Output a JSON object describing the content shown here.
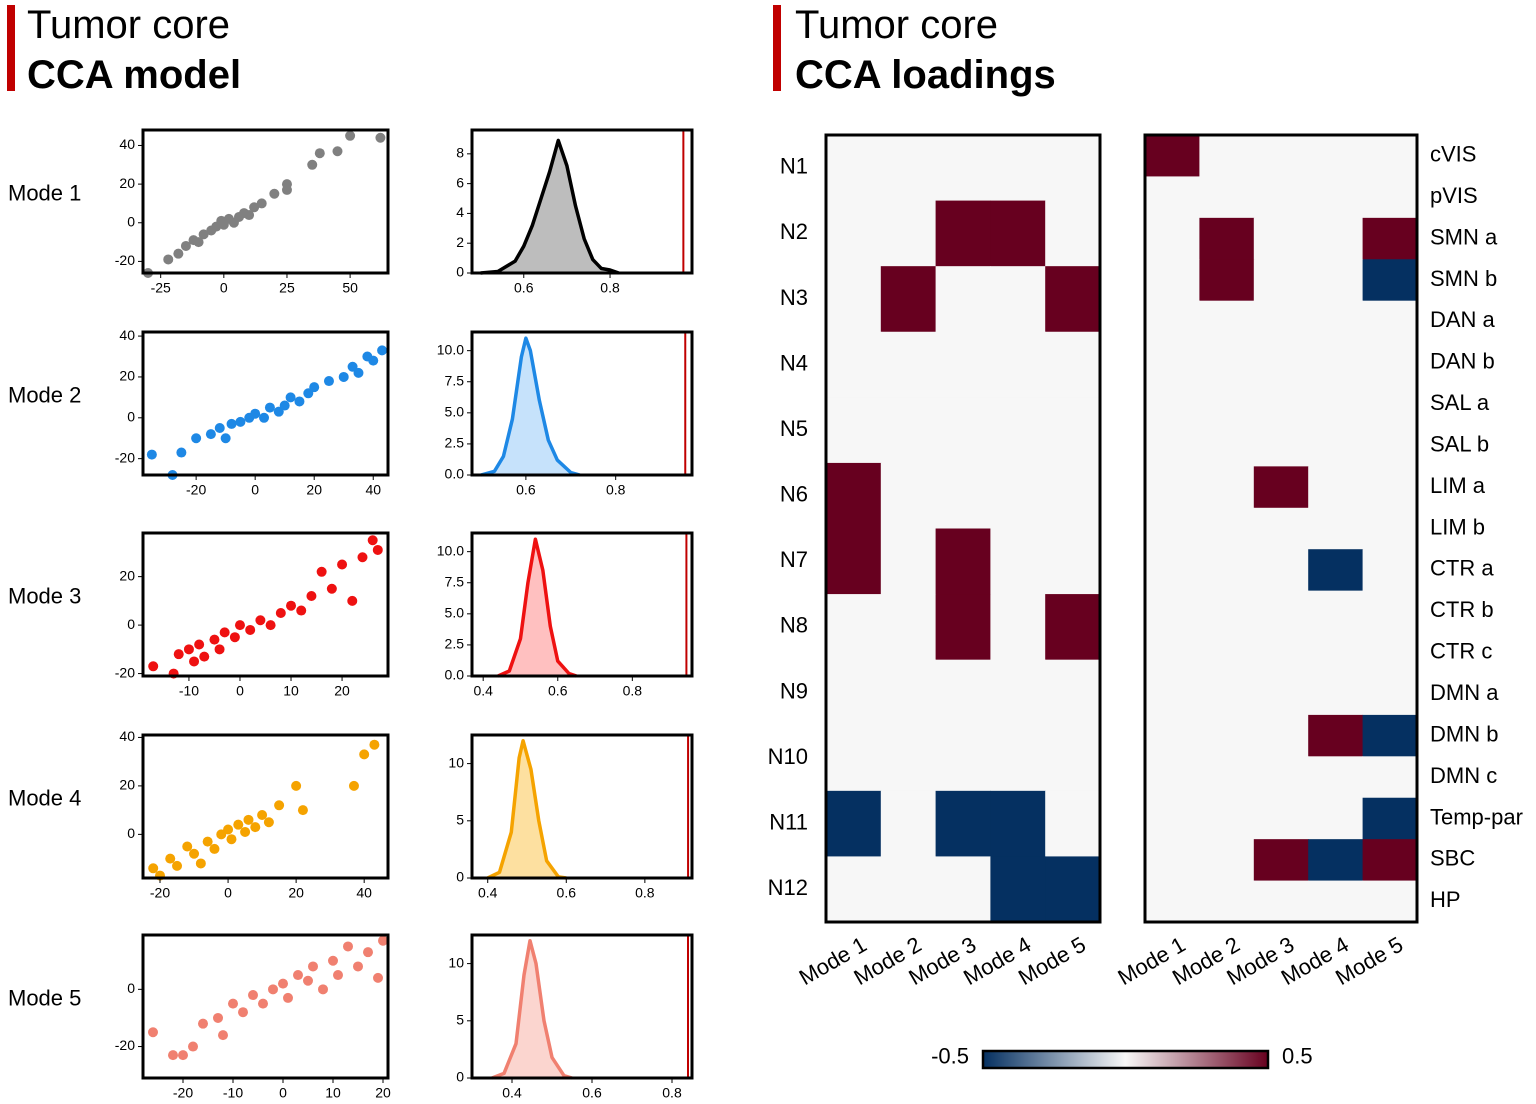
{
  "panels": [
    {
      "title": "Tumor core",
      "subtitle": "CCA model"
    },
    {
      "title": "Tumor core",
      "subtitle": "CCA loadings"
    }
  ],
  "chart_data": [
    {
      "type": "scatter",
      "title": "Mode 1",
      "color": "#808080",
      "x": [
        -30,
        -22,
        -18,
        -15,
        -12,
        -10,
        -8,
        -5,
        -3,
        -1,
        0,
        2,
        4,
        6,
        8,
        10,
        12,
        15,
        20,
        25,
        25,
        35,
        38,
        45,
        50,
        62
      ],
      "values": [
        -26,
        -19,
        -16,
        -12,
        -9,
        -10,
        -6,
        -4,
        -2,
        1,
        -1,
        2,
        0,
        3,
        5,
        4,
        8,
        10,
        15,
        20,
        17,
        30,
        36,
        37,
        45,
        44
      ],
      "xlim": [
        -32,
        65
      ],
      "xticks": [
        -25,
        0,
        25,
        50
      ],
      "ylim": [
        -26,
        48
      ],
      "yticks": [
        -20,
        0,
        20,
        40
      ]
    },
    {
      "type": "scatter",
      "title": "Mode 2",
      "color": "#1e88e5",
      "x": [
        -35,
        -28,
        -25,
        -20,
        -15,
        -12,
        -10,
        -8,
        -5,
        -2,
        0,
        3,
        5,
        8,
        10,
        12,
        15,
        18,
        20,
        25,
        30,
        33,
        35,
        38,
        40,
        43
      ],
      "values": [
        -18,
        -28,
        -17,
        -10,
        -8,
        -5,
        -10,
        -3,
        -2,
        0,
        2,
        0,
        5,
        3,
        6,
        10,
        8,
        12,
        15,
        18,
        20,
        25,
        22,
        30,
        28,
        33
      ],
      "xlim": [
        -38,
        45
      ],
      "xticks": [
        -20,
        0,
        20,
        40
      ],
      "ylim": [
        -28,
        42
      ],
      "yticks": [
        -20,
        0,
        20,
        40
      ]
    },
    {
      "type": "scatter",
      "title": "Mode 3",
      "color": "#ee1111",
      "x": [
        -17,
        -13,
        -12,
        -10,
        -9,
        -8,
        -7,
        -5,
        -4,
        -3,
        -1,
        0,
        2,
        4,
        6,
        8,
        10,
        12,
        14,
        16,
        18,
        20,
        22,
        24,
        26,
        27
      ],
      "values": [
        -17,
        -20,
        -12,
        -10,
        -15,
        -8,
        -13,
        -6,
        -10,
        -3,
        -5,
        0,
        -2,
        2,
        0,
        5,
        8,
        6,
        12,
        22,
        15,
        25,
        10,
        28,
        35,
        31
      ],
      "xlim": [
        -19,
        29
      ],
      "xticks": [
        -10,
        0,
        10,
        20
      ],
      "ylim": [
        -21,
        38
      ],
      "yticks": [
        -20,
        0,
        20
      ]
    },
    {
      "type": "scatter",
      "title": "Mode 4",
      "color": "#f5a300",
      "x": [
        -22,
        -20,
        -17,
        -15,
        -12,
        -10,
        -8,
        -6,
        -4,
        -2,
        0,
        1,
        3,
        5,
        6,
        8,
        10,
        12,
        15,
        20,
        22,
        37,
        40,
        43
      ],
      "values": [
        -14,
        -17,
        -10,
        -13,
        -5,
        -8,
        -12,
        -3,
        -6,
        0,
        2,
        -2,
        4,
        1,
        6,
        3,
        8,
        5,
        12,
        20,
        10,
        20,
        33,
        37
      ],
      "xlim": [
        -25,
        47
      ],
      "xticks": [
        -20,
        0,
        20,
        40
      ],
      "ylim": [
        -18,
        41
      ],
      "yticks": [
        0,
        20,
        40
      ]
    },
    {
      "type": "scatter",
      "title": "Mode 5",
      "color": "#f08070",
      "x": [
        -26,
        -22,
        -20,
        -18,
        -16,
        -13,
        -12,
        -10,
        -8,
        -6,
        -4,
        -2,
        0,
        1,
        3,
        5,
        6,
        8,
        10,
        11,
        13,
        15,
        17,
        19,
        20
      ],
      "values": [
        -15,
        -23,
        -23,
        -20,
        -12,
        -10,
        -16,
        -5,
        -8,
        -2,
        -5,
        0,
        2,
        -3,
        5,
        3,
        8,
        0,
        10,
        5,
        15,
        8,
        13,
        4,
        17
      ],
      "xlim": [
        -28,
        21
      ],
      "xticks": [
        -20,
        -10,
        0,
        10,
        20
      ],
      "ylim": [
        -31,
        19
      ],
      "yticks": [
        -20,
        0
      ]
    },
    {
      "type": "area",
      "line_color": "#000000",
      "fill": "#bdbdbd",
      "threshold": 0.97,
      "threshold_color": "#c00000",
      "x": [
        0.5,
        0.54,
        0.58,
        0.6,
        0.62,
        0.64,
        0.66,
        0.68,
        0.7,
        0.72,
        0.74,
        0.76,
        0.78,
        0.8,
        0.82
      ],
      "values": [
        0,
        0.1,
        0.8,
        1.8,
        3.2,
        5,
        6.8,
        8.9,
        7.2,
        4.5,
        2.3,
        0.9,
        0.3,
        0.2,
        0
      ],
      "xlim": [
        0.48,
        0.99
      ],
      "xticks": [
        0.6,
        0.8
      ],
      "ylim": [
        0,
        9.6
      ],
      "yticks": [
        0,
        2,
        4,
        6,
        8
      ]
    },
    {
      "type": "area",
      "line_color": "#1e88e5",
      "fill": "#c6e2fb",
      "threshold": 0.955,
      "threshold_color": "#c00000",
      "x": [
        0.5,
        0.53,
        0.55,
        0.57,
        0.59,
        0.6,
        0.61,
        0.63,
        0.65,
        0.67,
        0.7,
        0.72
      ],
      "values": [
        0,
        0.3,
        1.5,
        4.5,
        9.5,
        11,
        10,
        6,
        2.8,
        1.2,
        0.2,
        0
      ],
      "xlim": [
        0.48,
        0.97
      ],
      "xticks": [
        0.6,
        0.8
      ],
      "ylim": [
        0,
        11.5
      ],
      "yticks": [
        {
          "value": 0,
          "label": "0.0"
        },
        2.5,
        {
          "value": 5,
          "label": "5.0"
        },
        7.5,
        {
          "value": 10,
          "label": "10.0"
        }
      ]
    },
    {
      "type": "area",
      "line_color": "#ee1111",
      "fill": "#ffc0c0",
      "threshold": 0.945,
      "threshold_color": "#c00000",
      "x": [
        0.44,
        0.47,
        0.5,
        0.52,
        0.54,
        0.56,
        0.58,
        0.6,
        0.63,
        0.65
      ],
      "values": [
        0,
        0.4,
        3,
        7.5,
        11,
        8.5,
        4,
        1.2,
        0.2,
        0
      ],
      "xlim": [
        0.37,
        0.96
      ],
      "xticks": [
        0.4,
        0.6,
        0.8
      ],
      "ylim": [
        0,
        11.5
      ],
      "yticks": [
        {
          "value": 0,
          "label": "0.0"
        },
        2.5,
        {
          "value": 5,
          "label": "5.0"
        },
        7.5,
        {
          "value": 10,
          "label": "10.0"
        }
      ]
    },
    {
      "type": "area",
      "line_color": "#f5a300",
      "fill": "#fde0a0",
      "threshold": 0.91,
      "threshold_color": "#c00000",
      "x": [
        0.4,
        0.43,
        0.46,
        0.48,
        0.49,
        0.51,
        0.53,
        0.55,
        0.58,
        0.6
      ],
      "values": [
        0,
        0.5,
        4,
        10.5,
        12,
        9.5,
        5,
        1.5,
        0.1,
        0
      ],
      "xlim": [
        0.36,
        0.92
      ],
      "xticks": [
        0.4,
        0.6,
        0.8
      ],
      "ylim": [
        0,
        12.5
      ],
      "yticks": [
        0,
        5,
        10
      ]
    },
    {
      "type": "area",
      "line_color": "#f08070",
      "fill": "#fbd5cf",
      "threshold": 0.84,
      "threshold_color": "#c00000",
      "x": [
        0.35,
        0.38,
        0.41,
        0.43,
        0.445,
        0.46,
        0.48,
        0.5,
        0.53,
        0.55
      ],
      "values": [
        0,
        0.4,
        3,
        9,
        12,
        10,
        5,
        1.8,
        0.2,
        0
      ],
      "xlim": [
        0.3,
        0.85
      ],
      "xticks": [
        0.4,
        0.6,
        0.8
      ],
      "ylim": [
        0,
        12.5
      ],
      "yticks": [
        0,
        5,
        10
      ]
    },
    {
      "type": "heatmap",
      "row_label_side": "left",
      "zlim": [
        -0.5,
        0.5
      ],
      "colorscale": [
        "#053061",
        "#f7f7f7",
        "#67001f"
      ],
      "rows": [
        "N1",
        "N2",
        "N3",
        "N4",
        "N5",
        "N6",
        "N7",
        "N8",
        "N9",
        "N10",
        "N11",
        "N12"
      ],
      "columns": [
        "Mode 1",
        "Mode 2",
        "Mode 3",
        "Mode 4",
        "Mode 5"
      ],
      "values": [
        [
          0,
          0,
          0,
          0,
          0
        ],
        [
          0,
          0,
          0.5,
          0.5,
          0
        ],
        [
          0,
          0.5,
          0,
          0,
          0.5
        ],
        [
          0,
          0,
          0,
          0,
          0
        ],
        [
          0,
          0,
          0,
          0,
          0
        ],
        [
          0.5,
          0,
          0,
          0,
          0
        ],
        [
          0.5,
          0,
          0.5,
          0,
          0
        ],
        [
          0,
          0,
          0.5,
          0,
          0.5
        ],
        [
          0,
          0,
          0,
          0,
          0
        ],
        [
          0,
          0,
          0,
          0,
          0
        ],
        [
          -0.5,
          0,
          -0.5,
          -0.5,
          0
        ],
        [
          0,
          0,
          0,
          -0.5,
          -0.5
        ]
      ]
    },
    {
      "type": "heatmap",
      "row_label_side": "right",
      "zlim": [
        -0.5,
        0.5
      ],
      "colorscale": [
        "#053061",
        "#f7f7f7",
        "#67001f"
      ],
      "rows": [
        "cVIS",
        "pVIS",
        "SMN a",
        "SMN b",
        "DAN a",
        "DAN b",
        "SAL a",
        "SAL b",
        "LIM a",
        "LIM b",
        "CTR a",
        "CTR b",
        "CTR c",
        "DMN a",
        "DMN b",
        "DMN c",
        "Temp-par",
        "SBC",
        "HP"
      ],
      "columns": [
        "Mode 1",
        "Mode 2",
        "Mode 3",
        "Mode 4",
        "Mode 5"
      ],
      "values": [
        [
          0.5,
          0,
          0,
          0,
          0
        ],
        [
          0,
          0,
          0,
          0,
          0
        ],
        [
          0,
          0.5,
          0,
          0,
          0.5
        ],
        [
          0,
          0.5,
          0,
          0,
          -0.5
        ],
        [
          0,
          0,
          0,
          0,
          0
        ],
        [
          0,
          0,
          0,
          0,
          0
        ],
        [
          0,
          0,
          0,
          0,
          0
        ],
        [
          0,
          0,
          0,
          0,
          0
        ],
        [
          0,
          0,
          0.5,
          0,
          0
        ],
        [
          0,
          0,
          0,
          0,
          0
        ],
        [
          0,
          0,
          0,
          -0.5,
          0
        ],
        [
          0,
          0,
          0,
          0,
          0
        ],
        [
          0,
          0,
          0,
          0,
          0
        ],
        [
          0,
          0,
          0,
          0,
          0
        ],
        [
          0,
          0,
          0,
          0.5,
          -0.5
        ],
        [
          0,
          0,
          0,
          0,
          0
        ],
        [
          0,
          0,
          0,
          0,
          -0.5
        ],
        [
          0,
          0,
          0.5,
          -0.5,
          0.5
        ],
        [
          0,
          0,
          0,
          0,
          0
        ]
      ]
    },
    {
      "type": "colorbar",
      "xlim": [
        -0.5,
        0.5
      ],
      "xticks": [
        -0.5,
        0.5
      ],
      "colorscale": [
        "#053061",
        "#f7f7f7",
        "#67001f"
      ]
    }
  ]
}
